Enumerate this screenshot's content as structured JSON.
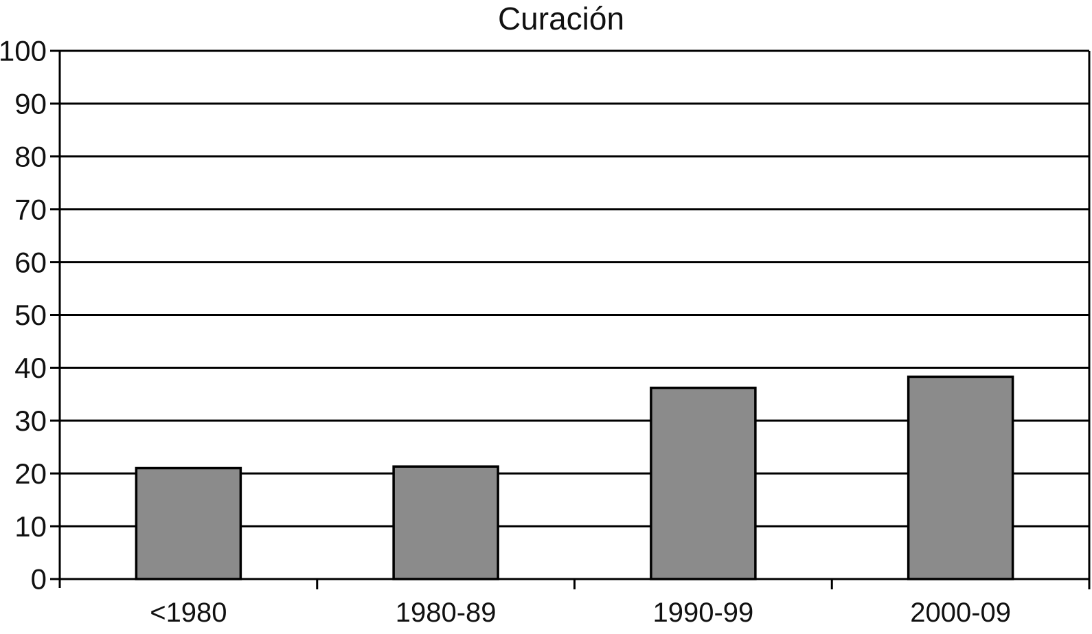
{
  "page": {
    "background": "#ffffff"
  },
  "chart_data": {
    "type": "bar",
    "title": "Curación",
    "categories": [
      "<1980",
      "1980-89",
      "1990-99",
      "2000-09"
    ],
    "values": [
      21,
      21.3,
      36.2,
      38.3
    ],
    "xlabel": "",
    "ylabel": "",
    "ylim": [
      0,
      100
    ],
    "ytick_step": 10,
    "ytick_labels": [
      "0",
      "10",
      "20",
      "30",
      "40",
      "50",
      "60",
      "70",
      "80",
      "90",
      "100"
    ],
    "grid": "horizontal-full-width",
    "legend": "none",
    "colors": {
      "bar_fill": "#8b8b8b",
      "bar_stroke": "#000000",
      "axis": "#000000",
      "gridline": "#000000",
      "text": "#111111",
      "background": "#ffffff"
    }
  }
}
